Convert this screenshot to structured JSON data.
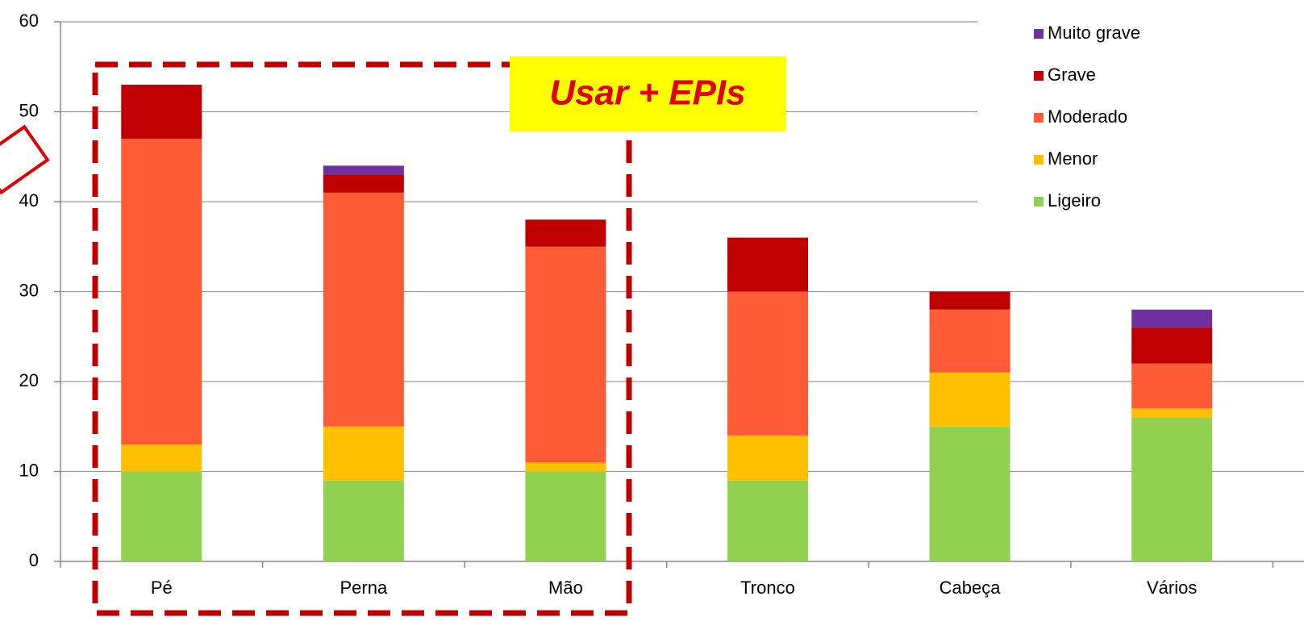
{
  "chart_data": {
    "type": "bar",
    "stacked": true,
    "categories": [
      "Pé",
      "Perna",
      "Mão",
      "Tronco",
      "Cabeça",
      "Vários"
    ],
    "series": [
      {
        "name": "Ligeiro",
        "color": "#92d050",
        "values": [
          10,
          9,
          10,
          9,
          15,
          16
        ]
      },
      {
        "name": "Menor",
        "color": "#ffc000",
        "values": [
          3,
          6,
          1,
          5,
          6,
          1
        ]
      },
      {
        "name": "Moderado",
        "color": "#ff5b35",
        "values": [
          34,
          26,
          24,
          16,
          7,
          5
        ]
      },
      {
        "name": "Grave",
        "color": "#c00000",
        "values": [
          6,
          2,
          3,
          6,
          2,
          4
        ]
      },
      {
        "name": "Muito grave",
        "color": "#7030a0",
        "values": [
          0,
          1,
          0,
          0,
          0,
          2
        ]
      }
    ],
    "ylim": [
      0,
      60
    ],
    "yticks": [
      0,
      10,
      20,
      30,
      40,
      50,
      60
    ],
    "grid": true,
    "legend": "right",
    "annotation": "Usar + EPIs"
  }
}
